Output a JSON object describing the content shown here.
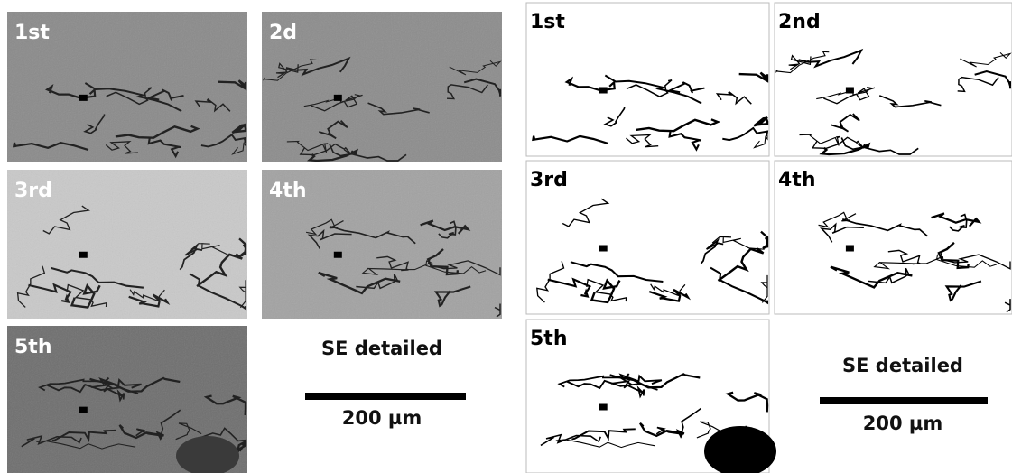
{
  "left": {
    "panels": [
      "1st",
      "2d",
      "3rd",
      "4th",
      "5th"
    ],
    "caption": "SE detailed",
    "scale": "200 µm"
  },
  "right": {
    "panels": [
      "1st",
      "2nd",
      "3rd",
      "4th",
      "5th"
    ],
    "caption": "SE detailed",
    "scale": "200 µm"
  }
}
